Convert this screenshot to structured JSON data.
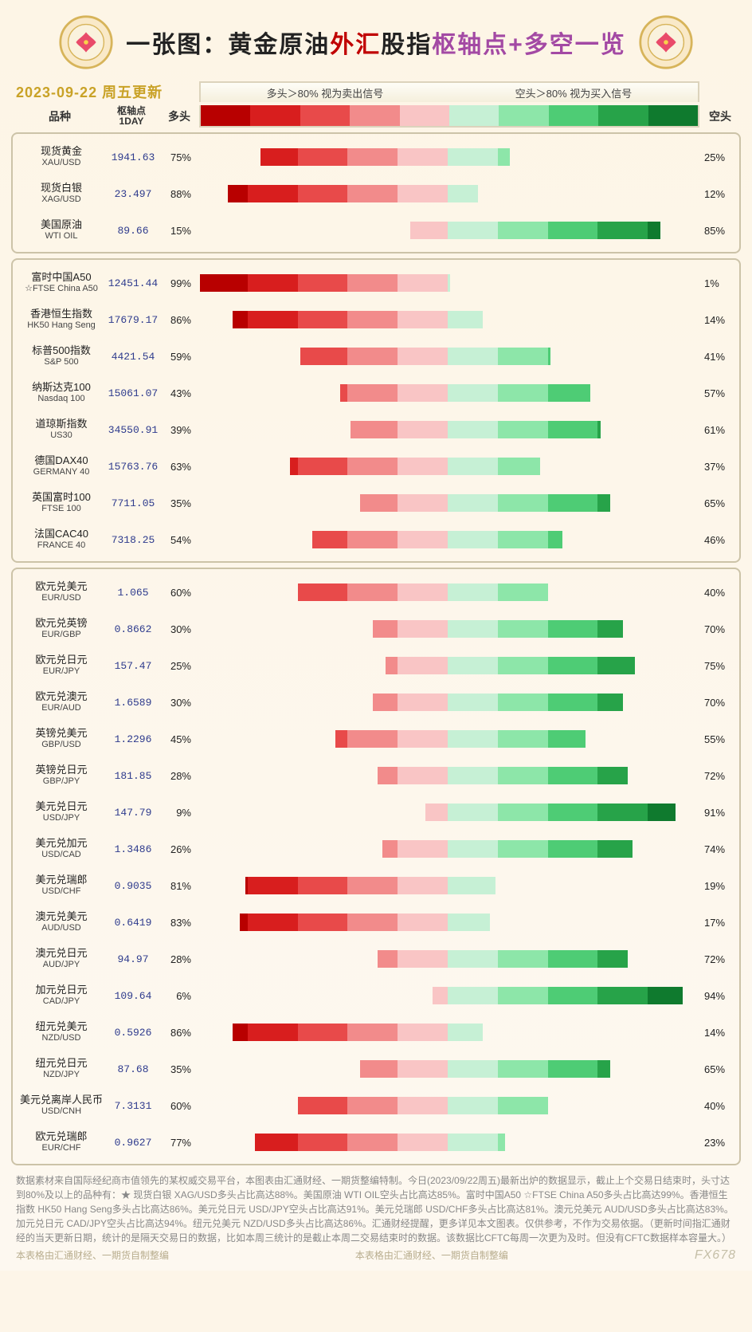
{
  "title": {
    "pre": "一张图：",
    "gold": "黄金原油",
    "fx": "外汇",
    "idx": "股指",
    "pivot": "枢轴点",
    "plus": "+多空一览"
  },
  "date_line": "2023-09-22 周五更新",
  "legend": {
    "long_signal": "多头＞80%  视为卖出信号",
    "short_signal": "空头＞80%  视为买入信号"
  },
  "columns": {
    "name": "品种",
    "pivot": "枢轴点\n1DAY",
    "long": "多头",
    "short": "空头"
  },
  "colors": {
    "red_buckets": [
      "#b80000",
      "#d81e1e",
      "#e84a4a",
      "#f28b8b",
      "#f9c5c5"
    ],
    "green_buckets": [
      "#c6f0d5",
      "#8de6a9",
      "#4ecc75",
      "#27a349",
      "#0f7a2e"
    ],
    "pivot_text": "#2e3b8d",
    "date_text": "#c9a227"
  },
  "sections": [
    {
      "rows": [
        {
          "name": "现货黄金",
          "sub": "XAU/USD",
          "pivot": "1941.63",
          "long": 75,
          "short": 25
        },
        {
          "name": "现货白银",
          "sub": "XAG/USD",
          "pivot": "23.497",
          "long": 88,
          "short": 12
        },
        {
          "name": "美国原油",
          "sub": "WTI OIL",
          "pivot": "89.66",
          "long": 15,
          "short": 85
        }
      ]
    },
    {
      "rows": [
        {
          "name": "富时中国A50",
          "sub": "☆FTSE China A50",
          "pivot": "12451.44",
          "long": 99,
          "short": 1
        },
        {
          "name": "香港恒生指数",
          "sub": "HK50 Hang Seng",
          "pivot": "17679.17",
          "long": 86,
          "short": 14
        },
        {
          "name": "标普500指数",
          "sub": "S&P 500",
          "pivot": "4421.54",
          "long": 59,
          "short": 41
        },
        {
          "name": "纳斯达克100",
          "sub": "Nasdaq 100",
          "pivot": "15061.07",
          "long": 43,
          "short": 57
        },
        {
          "name": "道琼斯指数",
          "sub": "US30",
          "pivot": "34550.91",
          "long": 39,
          "short": 61
        },
        {
          "name": "德国DAX40",
          "sub": "GERMANY 40",
          "pivot": "15763.76",
          "long": 63,
          "short": 37
        },
        {
          "name": "英国富时100",
          "sub": "FTSE 100",
          "pivot": "7711.05",
          "long": 35,
          "short": 65
        },
        {
          "name": "法国CAC40",
          "sub": "FRANCE 40",
          "pivot": "7318.25",
          "long": 54,
          "short": 46
        }
      ]
    },
    {
      "rows": [
        {
          "name": "欧元兑美元",
          "sub": "EUR/USD",
          "pivot": "1.065",
          "long": 60,
          "short": 40
        },
        {
          "name": "欧元兑英镑",
          "sub": "EUR/GBP",
          "pivot": "0.8662",
          "long": 30,
          "short": 70
        },
        {
          "name": "欧元兑日元",
          "sub": "EUR/JPY",
          "pivot": "157.47",
          "long": 25,
          "short": 75
        },
        {
          "name": "欧元兑澳元",
          "sub": "EUR/AUD",
          "pivot": "1.6589",
          "long": 30,
          "short": 70
        },
        {
          "name": "英镑兑美元",
          "sub": "GBP/USD",
          "pivot": "1.2296",
          "long": 45,
          "short": 55
        },
        {
          "name": "英镑兑日元",
          "sub": "GBP/JPY",
          "pivot": "181.85",
          "long": 28,
          "short": 72
        },
        {
          "name": "美元兑日元",
          "sub": "USD/JPY",
          "pivot": "147.79",
          "long": 9,
          "short": 91
        },
        {
          "name": "美元兑加元",
          "sub": "USD/CAD",
          "pivot": "1.3486",
          "long": 26,
          "short": 74
        },
        {
          "name": "美元兑瑞郎",
          "sub": "USD/CHF",
          "pivot": "0.9035",
          "long": 81,
          "short": 19
        },
        {
          "name": "澳元兑美元",
          "sub": "AUD/USD",
          "pivot": "0.6419",
          "long": 83,
          "short": 17
        },
        {
          "name": "澳元兑日元",
          "sub": "AUD/JPY",
          "pivot": "94.97",
          "long": 28,
          "short": 72
        },
        {
          "name": "加元兑日元",
          "sub": "CAD/JPY",
          "pivot": "109.64",
          "long": 6,
          "short": 94
        },
        {
          "name": "纽元兑美元",
          "sub": "NZD/USD",
          "pivot": "0.5926",
          "long": 86,
          "short": 14
        },
        {
          "name": "纽元兑日元",
          "sub": "NZD/JPY",
          "pivot": "87.68",
          "long": 35,
          "short": 65
        },
        {
          "name": "美元兑离岸人民币",
          "sub": "USD/CNH",
          "pivot": "7.3131",
          "long": 60,
          "short": 40
        },
        {
          "name": "欧元兑瑞郎",
          "sub": "EUR/CHF",
          "pivot": "0.9627",
          "long": 77,
          "short": 23
        }
      ]
    }
  ],
  "footnote": "数据素材来自国际经纪商市值领先的某权威交易平台，本图表由汇通财经、一期货整编特制。今日(2023/09/22周五)最新出炉的数据显示，截止上个交易日结束时，头寸达到80%及以上的品种有：★ 现货白银 XAG/USD多头占比高达88%。美国原油 WTI OIL空头占比高达85%。富时中国A50 ☆FTSE China A50多头占比高达99%。香港恒生指数 HK50 Hang Seng多头占比高达86%。美元兑日元 USD/JPY空头占比高达91%。美元兑瑞郎 USD/CHF多头占比高达81%。澳元兑美元 AUD/USD多头占比高达83%。加元兑日元 CAD/JPY空头占比高达94%。纽元兑美元 NZD/USD多头占比高达86%。汇通财经提醒，更多详见本文图表。仅供参考，不作为交易依据。（更新时间指汇通财经的当天更新日期，统计的是隔天交易日的数据，比如本周三统计的是截止本周二交易结束时的数据。该数据比CFTC每周一次更为及时。但没有CFTC数据样本容量大。）",
  "credit": "本表格由汇通财经、一期货自制整编",
  "watermark": "FX678"
}
